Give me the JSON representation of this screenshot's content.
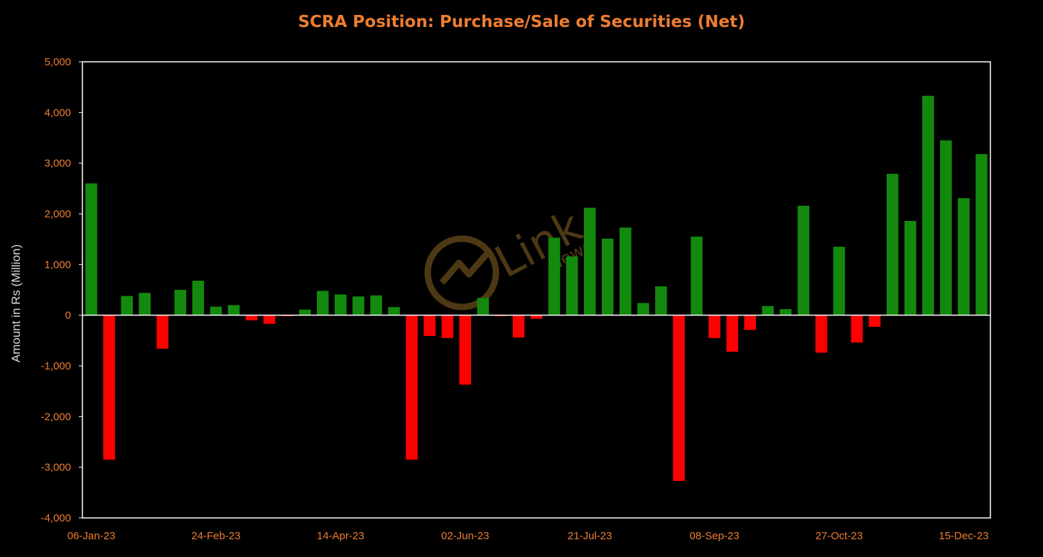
{
  "colors": {
    "positive": "#138A0D",
    "negative": "#FF0000",
    "text": "#ED7D31",
    "axis_label": "#D9D9D9",
    "background": "#000000",
    "plot_border": "#FFFFFF"
  },
  "watermark": {
    "icon": "link-news-logo-icon",
    "word": "Link",
    "sub": "News"
  },
  "chart_data": {
    "type": "bar",
    "title": "SCRA Position: Purchase/Sale of Securities (Net)",
    "xlabel": "",
    "ylabel": "Amount in Rs (Million)",
    "ylim": [
      -4000,
      5000
    ],
    "yticks": [
      5000,
      4000,
      3000,
      2000,
      1000,
      0,
      -1000,
      -2000,
      -3000,
      -4000
    ],
    "ytick_labels": [
      "5,000",
      "4,000",
      "3,000",
      "2,000",
      "1,000",
      "0",
      "-1,000",
      "-2,000",
      "-3,000",
      "-4,000"
    ],
    "xtick_labels": [
      {
        "label": "06-Jan-23",
        "index": 0
      },
      {
        "label": "24-Feb-23",
        "index": 7
      },
      {
        "label": "14-Apr-23",
        "index": 14
      },
      {
        "label": "02-Jun-23",
        "index": 21
      },
      {
        "label": "21-Jul-23",
        "index": 28
      },
      {
        "label": "08-Sep-23",
        "index": 35
      },
      {
        "label": "27-Oct-23",
        "index": 42
      },
      {
        "label": "15-Dec-23",
        "index": 49
      }
    ],
    "grid": false,
    "legend": "none",
    "values": [
      2600,
      -2850,
      380,
      440,
      -660,
      500,
      680,
      170,
      200,
      -100,
      -170,
      -20,
      110,
      480,
      410,
      370,
      390,
      160,
      -2850,
      -410,
      -450,
      -1370,
      340,
      -20,
      -440,
      -70,
      1530,
      1160,
      2120,
      1510,
      1730,
      240,
      570,
      -3270,
      1550,
      -450,
      -720,
      -290,
      180,
      120,
      2160,
      -740,
      1350,
      -540,
      -230,
      2790,
      1860,
      4330,
      3450,
      2310,
      3180
    ]
  }
}
